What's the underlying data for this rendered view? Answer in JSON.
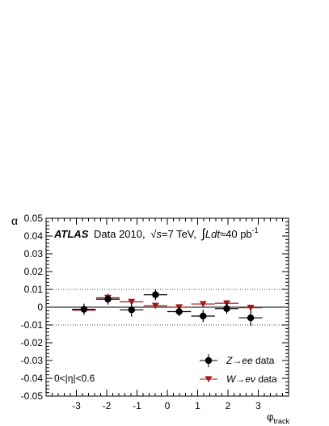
{
  "chart_data": {
    "type": "scatter",
    "xlabel": "φ",
    "xlabel_sub": "track",
    "ylabel": "α",
    "xlim": [
      -4,
      4
    ],
    "ylim": [
      -0.05,
      0.05
    ],
    "x_ticks": [
      -3,
      -2,
      -1,
      0,
      1,
      2,
      3
    ],
    "x_tick_labels": [
      "-3",
      "-2",
      "-1",
      "0",
      "1",
      "2",
      "3"
    ],
    "y_ticks": [
      -0.05,
      -0.04,
      -0.03,
      -0.02,
      -0.01,
      0,
      0.01,
      0.02,
      0.03,
      0.04,
      0.05
    ],
    "y_tick_labels": [
      "-0.05",
      "-0.04",
      "-0.03",
      "-0.02",
      "-0.01",
      "0",
      "0.01",
      "0.02",
      "0.03",
      "0.04",
      "0.05"
    ],
    "reference_lines": [
      0.01,
      0,
      -0.01
    ],
    "header": {
      "experiment": "ATLAS",
      "dataset": "Data 2010,",
      "energy_prefix": "√",
      "energy_var": "s",
      "energy_value": "=7 TeV,",
      "lumi_integral": "∫",
      "lumi_var": "Ldt",
      "lumi_value": "≈40 pb",
      "lumi_exp": "-1"
    },
    "region_label": "0<|η|<0.6",
    "legend_position": "bottom-right",
    "series": [
      {
        "name": "Z→ee data",
        "name_italic": "Z→ee",
        "name_suffix": " data",
        "marker": "circle",
        "color": "#000000",
        "points": [
          {
            "x": -2.75,
            "xerr": 0.39,
            "y": -0.0012,
            "yerr": 0.0032
          },
          {
            "x": -1.96,
            "xerr": 0.39,
            "y": 0.0045,
            "yerr": 0.003
          },
          {
            "x": -1.18,
            "xerr": 0.39,
            "y": -0.0015,
            "yerr": 0.0038
          },
          {
            "x": -0.39,
            "xerr": 0.39,
            "y": 0.007,
            "yerr": 0.003
          },
          {
            "x": 0.39,
            "xerr": 0.39,
            "y": -0.0025,
            "yerr": 0.0025
          },
          {
            "x": 1.18,
            "xerr": 0.39,
            "y": -0.005,
            "yerr": 0.0035
          },
          {
            "x": 1.96,
            "xerr": 0.39,
            "y": -0.0008,
            "yerr": 0.003
          },
          {
            "x": 2.75,
            "xerr": 0.39,
            "y": -0.006,
            "yerr": 0.0045
          }
        ]
      },
      {
        "name": "W→eν data",
        "name_italic": "W→eν",
        "name_suffix": " data",
        "marker": "triangle-down",
        "color": "#a01818",
        "points": [
          {
            "x": -2.75,
            "xerr": 0.39,
            "y": -0.0017,
            "yerr": 0.001
          },
          {
            "x": -1.96,
            "xerr": 0.39,
            "y": 0.0053,
            "yerr": 0.001
          },
          {
            "x": -1.18,
            "xerr": 0.39,
            "y": 0.003,
            "yerr": 0.001
          },
          {
            "x": -0.39,
            "xerr": 0.39,
            "y": 0.0008,
            "yerr": 0.001
          },
          {
            "x": 0.39,
            "xerr": 0.39,
            "y": 0.0,
            "yerr": 0.001
          },
          {
            "x": 1.18,
            "xerr": 0.39,
            "y": 0.0018,
            "yerr": 0.001
          },
          {
            "x": 1.96,
            "xerr": 0.39,
            "y": 0.0022,
            "yerr": 0.001
          },
          {
            "x": 2.75,
            "xerr": 0.39,
            "y": -0.0003,
            "yerr": 0.001
          }
        ]
      }
    ]
  }
}
